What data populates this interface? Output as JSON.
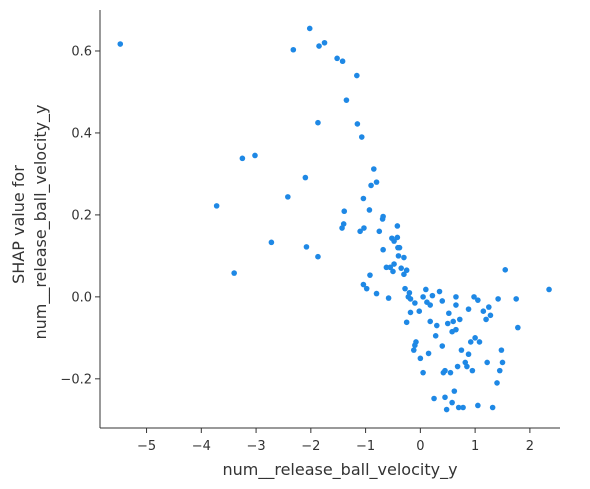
{
  "chart_data": {
    "type": "scatter",
    "xlabel": "num__release_ball_velocity_y",
    "ylabel_lines": [
      "SHAP value for",
      "num__release_ball_velocity_y"
    ],
    "xlim": [
      -5.85,
      2.55
    ],
    "ylim": [
      -0.32,
      0.7
    ],
    "xticks": [
      -5,
      -4,
      -3,
      -2,
      -1,
      0,
      1,
      2
    ],
    "xtick_labels": [
      "−5",
      "−4",
      "−3",
      "−2",
      "−1",
      "0",
      "1",
      "2"
    ],
    "yticks": [
      -0.2,
      0.0,
      0.2,
      0.4,
      0.6
    ],
    "ytick_labels": [
      "−0.2",
      "0.0",
      "0.2",
      "0.4",
      "0.6"
    ],
    "grid": false,
    "point_color": "#1e88e5",
    "points": [
      [
        -5.48,
        0.617
      ],
      [
        -3.72,
        0.222
      ],
      [
        -3.4,
        0.058
      ],
      [
        -3.25,
        0.338
      ],
      [
        -3.02,
        0.345
      ],
      [
        -2.72,
        0.133
      ],
      [
        -2.42,
        0.244
      ],
      [
        -2.32,
        0.603
      ],
      [
        -2.1,
        0.291
      ],
      [
        -2.08,
        0.122
      ],
      [
        -2.02,
        0.655
      ],
      [
        -1.87,
        0.098
      ],
      [
        -1.87,
        0.425
      ],
      [
        -1.85,
        0.612
      ],
      [
        -1.75,
        0.62
      ],
      [
        -1.52,
        0.582
      ],
      [
        -1.42,
        0.575
      ],
      [
        -1.35,
        0.48
      ],
      [
        -1.43,
        0.168
      ],
      [
        -1.39,
        0.209
      ],
      [
        -1.4,
        0.178
      ],
      [
        -1.16,
        0.54
      ],
      [
        -1.15,
        0.422
      ],
      [
        -1.1,
        0.16
      ],
      [
        -1.07,
        0.39
      ],
      [
        -1.03,
        0.168
      ],
      [
        -1.04,
        0.24
      ],
      [
        -1.04,
        0.03
      ],
      [
        -0.98,
        0.02
      ],
      [
        -0.93,
        0.212
      ],
      [
        -0.92,
        0.053
      ],
      [
        -0.9,
        0.272
      ],
      [
        -0.85,
        0.312
      ],
      [
        -0.8,
        0.28
      ],
      [
        -0.75,
        0.16
      ],
      [
        -0.8,
        0.008
      ],
      [
        -0.68,
        0.196
      ],
      [
        -0.69,
        0.19
      ],
      [
        -0.68,
        0.115
      ],
      [
        -0.62,
        0.072
      ],
      [
        -0.58,
        -0.003
      ],
      [
        -0.55,
        0.072
      ],
      [
        -0.52,
        0.143
      ],
      [
        -0.48,
        0.136
      ],
      [
        -0.5,
        0.062
      ],
      [
        -0.48,
        0.08
      ],
      [
        -0.42,
        0.173
      ],
      [
        -0.42,
        0.145
      ],
      [
        -0.41,
        0.12
      ],
      [
        -0.4,
        0.1
      ],
      [
        -0.38,
        0.12
      ],
      [
        -0.35,
        0.07
      ],
      [
        -0.3,
        0.055
      ],
      [
        -0.3,
        0.096
      ],
      [
        -0.25,
        0.065
      ],
      [
        -0.28,
        0.02
      ],
      [
        -0.22,
        0.0
      ],
      [
        -0.2,
        0.01
      ],
      [
        -0.18,
        -0.005
      ],
      [
        -0.18,
        -0.038
      ],
      [
        -0.25,
        -0.062
      ],
      [
        -0.1,
        -0.015
      ],
      [
        -0.1,
        -0.118
      ],
      [
        -0.12,
        -0.13
      ],
      [
        -0.08,
        -0.11
      ],
      [
        -0.02,
        -0.035
      ],
      [
        0.0,
        -0.15
      ],
      [
        0.05,
        -0.185
      ],
      [
        0.05,
        0.0
      ],
      [
        0.1,
        0.018
      ],
      [
        0.12,
        -0.013
      ],
      [
        0.15,
        -0.138
      ],
      [
        0.18,
        -0.02
      ],
      [
        0.18,
        -0.06
      ],
      [
        0.22,
        0.003
      ],
      [
        0.25,
        -0.248
      ],
      [
        0.28,
        -0.095
      ],
      [
        0.3,
        -0.07
      ],
      [
        0.35,
        0.013
      ],
      [
        0.4,
        -0.01
      ],
      [
        0.4,
        -0.12
      ],
      [
        0.42,
        -0.185
      ],
      [
        0.45,
        -0.18
      ],
      [
        0.45,
        -0.245
      ],
      [
        0.48,
        -0.275
      ],
      [
        0.5,
        -0.065
      ],
      [
        0.52,
        -0.04
      ],
      [
        0.55,
        -0.185
      ],
      [
        0.58,
        -0.085
      ],
      [
        0.58,
        -0.258
      ],
      [
        0.6,
        -0.06
      ],
      [
        0.62,
        -0.23
      ],
      [
        0.65,
        -0.02
      ],
      [
        0.65,
        -0.08
      ],
      [
        0.65,
        0.0
      ],
      [
        0.68,
        -0.17
      ],
      [
        0.7,
        -0.27
      ],
      [
        0.72,
        -0.055
      ],
      [
        0.75,
        -0.13
      ],
      [
        0.78,
        -0.27
      ],
      [
        0.82,
        -0.16
      ],
      [
        0.85,
        -0.17
      ],
      [
        0.88,
        -0.03
      ],
      [
        0.88,
        -0.14
      ],
      [
        0.92,
        -0.11
      ],
      [
        0.95,
        -0.18
      ],
      [
        0.98,
        0.0
      ],
      [
        1.0,
        -0.1
      ],
      [
        1.05,
        -0.008
      ],
      [
        1.05,
        -0.265
      ],
      [
        1.08,
        -0.11
      ],
      [
        1.15,
        -0.035
      ],
      [
        1.2,
        -0.055
      ],
      [
        1.22,
        -0.16
      ],
      [
        1.25,
        -0.025
      ],
      [
        1.28,
        -0.045
      ],
      [
        1.32,
        -0.27
      ],
      [
        1.4,
        -0.21
      ],
      [
        1.42,
        -0.005
      ],
      [
        1.45,
        -0.18
      ],
      [
        1.48,
        -0.13
      ],
      [
        1.5,
        -0.16
      ],
      [
        1.55,
        0.066
      ],
      [
        1.75,
        -0.005
      ],
      [
        1.78,
        -0.075
      ],
      [
        2.35,
        0.018
      ]
    ]
  }
}
